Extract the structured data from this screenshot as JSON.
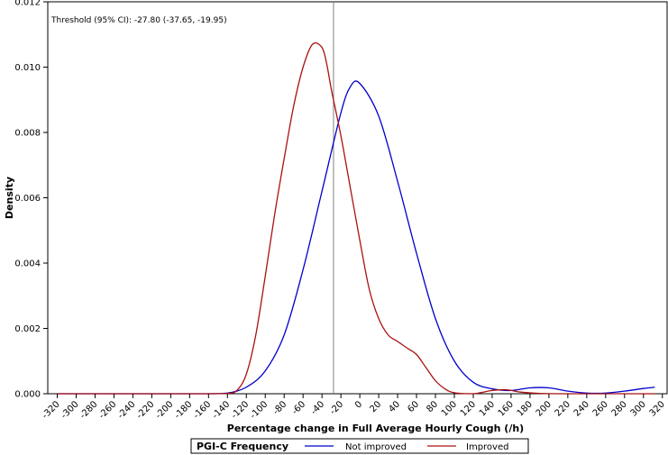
{
  "chart_data": {
    "type": "line",
    "ylabel": "Density",
    "xlabel": "Percentage change in Full Average Hourly Cough (/h)",
    "annotation": "Threshold (95% CI): -27.80 (-37.65, -19.95)",
    "threshold_x": -27.8,
    "xlim": [
      -330,
      325
    ],
    "ylim": [
      0,
      0.012
    ],
    "x_ticks": [
      -320,
      -300,
      -280,
      -260,
      -240,
      -220,
      -200,
      -180,
      -160,
      -140,
      -120,
      -100,
      -80,
      -60,
      -40,
      -20,
      0,
      20,
      40,
      60,
      80,
      100,
      120,
      140,
      160,
      180,
      200,
      220,
      240,
      260,
      280,
      300,
      320
    ],
    "y_ticks": [
      0,
      0.002,
      0.004,
      0.006,
      0.008,
      0.01,
      0.012
    ],
    "y_tick_labels": [
      "0.000",
      "0.002",
      "0.004",
      "0.006",
      "0.008",
      "0.010",
      "0.012"
    ],
    "legend": {
      "title": "PGI-C Frequency",
      "placement": "bottom"
    },
    "series": [
      {
        "name": "Not improved",
        "color": "#0000cc",
        "x": [
          -320,
          -200,
          -160,
          -140,
          -120,
          -100,
          -80,
          -60,
          -40,
          -20,
          -10,
          0,
          20,
          40,
          60,
          80,
          100,
          120,
          140,
          160,
          180,
          200,
          220,
          240,
          260,
          280,
          300,
          312
        ],
        "y": [
          0,
          0,
          0,
          2e-05,
          0.0002,
          0.0007,
          0.0018,
          0.0038,
          0.0062,
          0.0086,
          0.0094,
          0.0095,
          0.0085,
          0.0065,
          0.0043,
          0.0023,
          0.001,
          0.00035,
          0.00015,
          0.0001,
          0.00018,
          0.00018,
          8e-05,
          2e-05,
          2e-05,
          8e-05,
          0.00016,
          0.0002
        ]
      },
      {
        "name": "Improved",
        "color": "#aa1111",
        "x": [
          -320,
          -200,
          -160,
          -140,
          -130,
          -120,
          -110,
          -100,
          -90,
          -80,
          -70,
          -60,
          -50,
          -40,
          -35,
          -30,
          -20,
          -10,
          0,
          10,
          20,
          30,
          40,
          50,
          60,
          70,
          80,
          90,
          100,
          120,
          140,
          155,
          170,
          190,
          220,
          260,
          300,
          312
        ],
        "y": [
          0,
          0,
          0,
          1e-05,
          0.0001,
          0.0006,
          0.0018,
          0.0036,
          0.0055,
          0.0072,
          0.0088,
          0.01,
          0.0107,
          0.0106,
          0.0101,
          0.0093,
          0.0079,
          0.0063,
          0.0047,
          0.0032,
          0.0023,
          0.0018,
          0.0016,
          0.0014,
          0.0012,
          0.0008,
          0.0004,
          0.00015,
          3e-05,
          0,
          0.0001,
          0.00012,
          5e-05,
          1e-05,
          0,
          0,
          0,
          0
        ]
      }
    ]
  }
}
